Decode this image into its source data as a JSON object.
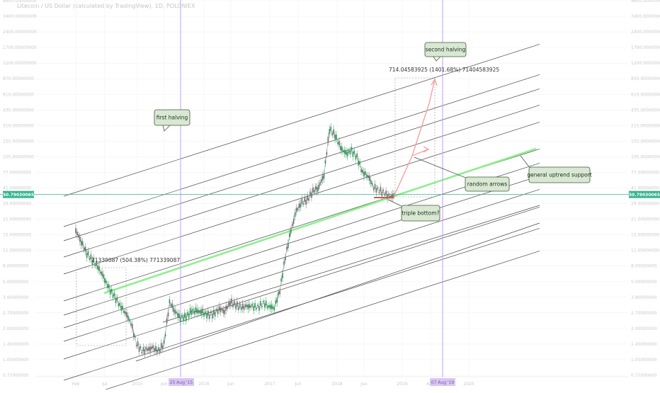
{
  "header": {
    "title": "Litecoin / US Dollar (calculated by TradingView), 1D, POLONIEX"
  },
  "colors": {
    "background": "#ffffff",
    "grid": "#f2f2f2",
    "channel_line": "#474747",
    "support_line": "#8ef08e",
    "price_line": "#35b38f",
    "halving_line": "#c39bf0",
    "candle_up": "#2e9a5a",
    "candle_down": "#707070",
    "callout_fill": "#d9e8d3",
    "callout_stroke": "#3f5a3a",
    "arrow": "#f4a3a3",
    "triple_bottom_bar": "#d9534f",
    "axis_text": "#c8c8c8"
  },
  "price_tag": {
    "left": "50.79030065",
    "right": "50.79030065"
  },
  "annotations": {
    "first_halving": "first halving",
    "second_halving": "second halving",
    "random_arrows": "random arrows",
    "general_support": "general uptrend support",
    "triple_bottom": "triple bottom?",
    "measure_upper": "714.04583925 (1401.68%) 71404583925",
    "measure_lower": "71339087 (504.38%) 771339087",
    "halving_date_1": "25 Aug '15",
    "halving_date_2": "07 Aug '19"
  },
  "chart_data": {
    "type": "line",
    "title": "Litecoin / US Dollar (calculated by TradingView), 1D, POLONIEX",
    "y_scale": "log",
    "grid": true,
    "x_ticks": [
      "Feb",
      "Jul",
      "2015",
      "Jun",
      "2016",
      "Jun",
      "2017",
      "Jun",
      "2018",
      "Jun",
      "2019",
      "Aug",
      "2020"
    ],
    "y_ticks_left": [
      "4600.00000000",
      "3400.00000000",
      "2400.00000000",
      "1700.00000000",
      "1200.00000000",
      "870.00000000",
      "610.00000000",
      "430.00000000",
      "310.00000000",
      "155.00000000",
      "105.00000000",
      "77.00000000",
      "41.00000000",
      "29.00000000",
      "21.00000000",
      "15.00000000",
      "11.00000000",
      "8.00000000",
      "5.00000000",
      "3.90000000",
      "2.70000000",
      "2.00000000",
      "1.45000000",
      "1.05000000",
      "0.77000000"
    ],
    "y_ticks_right": [
      "4600.00000000",
      "3400.00000000",
      "2400.00000000",
      "1700.00000000",
      "1200.00000000",
      "850.00000000",
      "610.00000000",
      "435.00000000",
      "215.00000000",
      "155.00000000",
      "105.00000000",
      "77.00000000",
      "41.00000000",
      "29.00000000",
      "21.00000000",
      "15.00000000",
      "11.00000000",
      "8.00000000",
      "5.00000000",
      "3.90000000",
      "2.70000000",
      "2.00000000",
      "1.45000000",
      "1.05000000",
      "0.77000000"
    ],
    "current_price": 50.79030065,
    "halvings": [
      "2015-08-25",
      "2019-08-07"
    ],
    "series": [
      {
        "values": [
          [
            "2014-02",
            22
          ],
          [
            "2014-03",
            17
          ],
          [
            "2014-04",
            13
          ],
          [
            "2014-05",
            11
          ],
          [
            "2014-06",
            9.5
          ],
          [
            "2014-07",
            7.5
          ],
          [
            "2014-08",
            5.8
          ],
          [
            "2014-09",
            4.8
          ],
          [
            "2014-10",
            3.9
          ],
          [
            "2014-11",
            3.3
          ],
          [
            "2014-12",
            2.6
          ],
          [
            "2015-01",
            1.6
          ],
          [
            "2015-02",
            1.35
          ],
          [
            "2015-03",
            1.4
          ],
          [
            "2015-04",
            1.45
          ],
          [
            "2015-05",
            1.35
          ],
          [
            "2015-06",
            1.6
          ],
          [
            "2015-07",
            4.2
          ],
          [
            "2015-08",
            3.4
          ],
          [
            "2015-09",
            2.9
          ],
          [
            "2015-10",
            3.0
          ],
          [
            "2015-11",
            3.4
          ],
          [
            "2015-12",
            3.4
          ],
          [
            "2016-01",
            3.3
          ],
          [
            "2016-02",
            3.1
          ],
          [
            "2016-03",
            3.2
          ],
          [
            "2016-04",
            3.6
          ],
          [
            "2016-05",
            3.4
          ],
          [
            "2016-06",
            4.2
          ],
          [
            "2016-07",
            3.9
          ],
          [
            "2016-08",
            3.7
          ],
          [
            "2016-09",
            3.8
          ],
          [
            "2016-10",
            3.8
          ],
          [
            "2016-11",
            3.7
          ],
          [
            "2016-12",
            4.1
          ],
          [
            "2017-01",
            3.8
          ],
          [
            "2017-02",
            3.7
          ],
          [
            "2017-03",
            5.5
          ],
          [
            "2017-04",
            12
          ],
          [
            "2017-05",
            22
          ],
          [
            "2017-06",
            35
          ],
          [
            "2017-07",
            42
          ],
          [
            "2017-08",
            45
          ],
          [
            "2017-09",
            55
          ],
          [
            "2017-10",
            60
          ],
          [
            "2017-11",
            80
          ],
          [
            "2017-12",
            230
          ],
          [
            "2018-01",
            200
          ],
          [
            "2018-02",
            150
          ],
          [
            "2018-03",
            130
          ],
          [
            "2018-04",
            140
          ],
          [
            "2018-05",
            120
          ],
          [
            "2018-06",
            85
          ],
          [
            "2018-07",
            78
          ],
          [
            "2018-08",
            60
          ],
          [
            "2018-09",
            56
          ],
          [
            "2018-10",
            52
          ],
          [
            "2018-11",
            48
          ],
          [
            "2018-12",
            50.79
          ]
        ]
      }
    ]
  }
}
